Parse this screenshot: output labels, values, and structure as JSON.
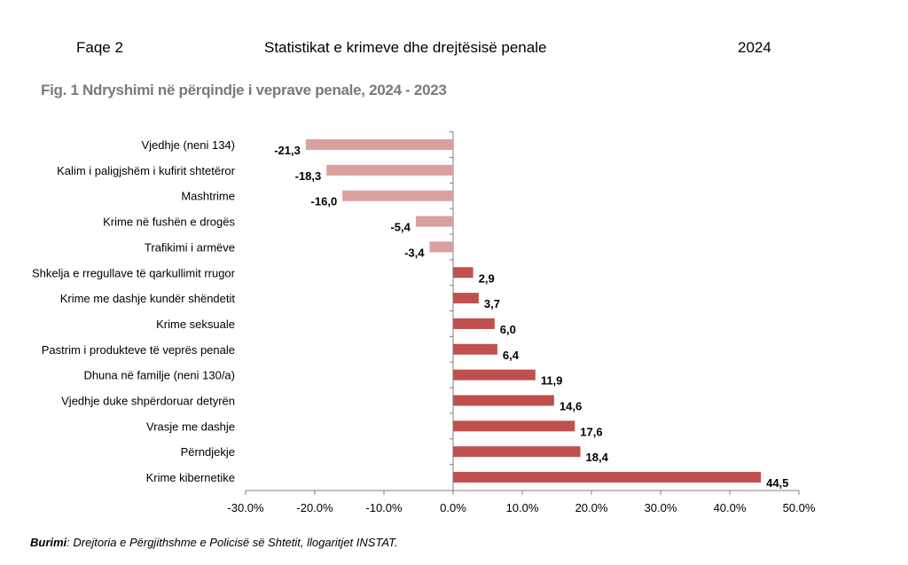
{
  "header": {
    "left": "Faqe 2",
    "center": "Statistikat e krimeve dhe drejtësisë penale",
    "right": "2024"
  },
  "figure_title": "Fig. 1 Ndryshimi në përqindje i veprave penale, 2024 - 2023",
  "source": {
    "label": "Burimi",
    "text": ": Drejtoria e Përgjithshme e Policisë së Shtetit, llogaritjet INSTAT."
  },
  "colors": {
    "negative": "#d9a09f",
    "positive": "#c0504d",
    "axis": "#7f7f7f"
  },
  "chart_data": {
    "type": "bar",
    "orientation": "horizontal",
    "title": "Fig. 1 Ndryshimi në përqindje i veprave penale, 2024 - 2023",
    "categories": [
      "Vjedhje (neni 134)",
      "Kalim i paligjshëm i kufirit shtetëror",
      "Mashtrime",
      "Krime në fushën e drogës",
      "Trafikimi i armëve",
      "Shkelja e rregullave të qarkullimit rrugor",
      "Krime me dashje kundër shëndetit",
      "Krime seksuale",
      "Pastrim i produkteve të veprës penale",
      "Dhuna në familje (neni 130/a)",
      "Vjedhje duke shpërdoruar detyrën",
      "Vrasje me dashje",
      "Përndjekje",
      "Krime kibernetike"
    ],
    "values": [
      -21.3,
      -18.3,
      -16.0,
      -5.4,
      -3.4,
      2.9,
      3.7,
      6.0,
      6.4,
      11.9,
      14.6,
      17.6,
      18.4,
      44.5
    ],
    "value_labels": [
      "-21,3",
      "-18,3",
      "-16,0",
      "-5,4",
      "-3,4",
      "2,9",
      "3,7",
      "6,0",
      "6,4",
      "11,9",
      "14,6",
      "17,6",
      "18,4",
      "44,5"
    ],
    "xlim": [
      -30,
      50
    ],
    "xticks": [
      -30,
      -20,
      -10,
      0,
      10,
      20,
      30,
      40,
      50
    ],
    "xtick_labels": [
      "-30.0%",
      "-20.0%",
      "-10.0%",
      "0.0%",
      "10.0%",
      "20.0%",
      "30.0%",
      "40.0%",
      "50.0%"
    ],
    "xlabel": "",
    "ylabel": "",
    "grid": false,
    "legend": "none"
  }
}
